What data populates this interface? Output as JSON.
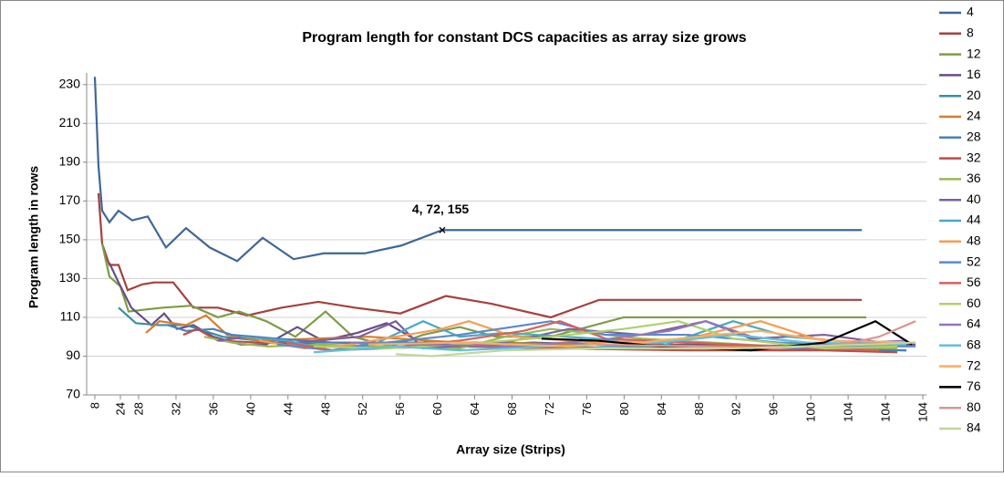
{
  "chart_data": {
    "type": "line",
    "title": "Program length for constant DCS capacities as array size grows",
    "x_label": "Array size (Strips)",
    "y_label": "Program length in rows",
    "annotation": "4, 72, 155",
    "ylim": [
      70,
      236
    ],
    "yticks": [
      70,
      90,
      110,
      130,
      150,
      170,
      190,
      210,
      230
    ],
    "xlim": [
      0,
      90.8
    ],
    "xticks": [
      {
        "value": 0,
        "label": "8"
      },
      {
        "value": 2.8,
        "label": "24"
      },
      {
        "value": 4.8,
        "label": "28"
      },
      {
        "value": 8.9,
        "label": "32"
      },
      {
        "value": 12.99,
        "label": "36"
      },
      {
        "value": 17.09,
        "label": "40"
      },
      {
        "value": 21.18,
        "label": "44"
      },
      {
        "value": 25.28,
        "label": "48"
      },
      {
        "value": 29.37,
        "label": "52"
      },
      {
        "value": 33.47,
        "label": "56"
      },
      {
        "value": 37.56,
        "label": "60"
      },
      {
        "value": 41.66,
        "label": "64"
      },
      {
        "value": 45.75,
        "label": "68"
      },
      {
        "value": 49.85,
        "label": "72"
      },
      {
        "value": 53.94,
        "label": "76"
      },
      {
        "value": 58.04,
        "label": "80"
      },
      {
        "value": 62.13,
        "label": "84"
      },
      {
        "value": 66.23,
        "label": "88"
      },
      {
        "value": 70.32,
        "label": "92"
      },
      {
        "value": 74.42,
        "label": "96"
      },
      {
        "value": 78.51,
        "label": "100"
      },
      {
        "value": 82.61,
        "label": "104"
      },
      {
        "value": 86.7,
        "label": "104"
      },
      {
        "value": 90.8,
        "label": "104"
      }
    ],
    "grid": true,
    "legend": "right",
    "series": [
      {
        "name": "4",
        "color": "#3F6797",
        "x": [
          0,
          0.4,
          0.8,
          1.6,
          2.6,
          4.1,
          5.8,
          7.8,
          10,
          12.6,
          15.6,
          18.4,
          21.8,
          25.1,
          29.6,
          33.6,
          38.1,
          84.1
        ],
        "values": [
          234,
          188,
          165,
          159,
          165,
          160,
          162,
          146,
          156,
          146,
          139,
          151,
          140,
          143,
          143,
          147,
          155,
          155
        ]
      },
      {
        "name": "8",
        "color": "#A5403D",
        "x": [
          0.4,
          0.8,
          1.6,
          2.6,
          3.6,
          5.2,
          6.5,
          8.6,
          10.8,
          13.5,
          16.7,
          20.5,
          24.5,
          28.5,
          33.5,
          38.5,
          43.5,
          50,
          55.3,
          84.1
        ],
        "values": [
          174,
          148,
          137,
          137,
          124,
          127,
          128,
          128,
          115,
          115,
          111,
          115,
          118,
          115,
          112,
          121,
          117,
          110,
          119,
          119
        ]
      },
      {
        "name": "12",
        "color": "#7E9C45",
        "x": [
          0.8,
          1.6,
          2.8,
          3.7,
          5.5,
          7.5,
          10.6,
          13.5,
          15.8,
          18.8,
          22,
          25.3,
          28.3,
          32.5,
          36,
          40,
          44,
          50,
          58,
          84.6
        ],
        "values": [
          148,
          131,
          126,
          113,
          114,
          115,
          116,
          110,
          113,
          108,
          100,
          113,
          100,
          95,
          101,
          105,
          100,
          100,
          110,
          110
        ]
      },
      {
        "name": "16",
        "color": "#674E87",
        "x": [
          1.6,
          2.6,
          4,
          6.2,
          7.6,
          9,
          10.8,
          13,
          16,
          18.8,
          22.2,
          25,
          28.8,
          32,
          35,
          40,
          48,
          55,
          65,
          80,
          90
        ],
        "values": [
          138,
          128,
          115,
          106,
          112,
          104,
          106,
          100,
          96,
          96,
          105,
          98,
          102,
          107,
          99,
          95,
          97,
          96,
          96,
          95,
          96
        ]
      },
      {
        "name": "20",
        "color": "#3B8EA5",
        "x": [
          2.6,
          4.5,
          7,
          10,
          14,
          20,
          30,
          45,
          60,
          75,
          89
        ],
        "values": [
          115,
          107,
          106,
          106,
          100,
          97,
          97,
          97,
          95,
          94,
          93
        ]
      },
      {
        "name": "24",
        "color": "#D67E2E",
        "x": [
          5.6,
          7.1,
          10,
          12.2,
          14.5,
          18,
          24,
          30,
          40,
          55,
          70,
          87
        ],
        "values": [
          102,
          108,
          106,
          111,
          101,
          98,
          99,
          100,
          97,
          96,
          95,
          94
        ]
      },
      {
        "name": "28",
        "color": "#4A7EBB",
        "x": [
          8,
          10,
          13,
          15,
          20,
          26,
          35,
          45,
          60,
          75,
          89
        ],
        "values": [
          106,
          103,
          104,
          101,
          99,
          97,
          96,
          95,
          94,
          94,
          93
        ]
      },
      {
        "name": "32",
        "color": "#BE4B48",
        "x": [
          9.7,
          11.2,
          13.5,
          18,
          24,
          30,
          40,
          50,
          65,
          80,
          88
        ],
        "values": [
          101,
          104,
          98,
          97,
          96,
          94,
          95,
          94,
          93,
          93,
          92
        ]
      },
      {
        "name": "36",
        "color": "#98B954",
        "x": [
          12,
          15,
          19,
          25,
          31,
          40,
          45,
          50,
          60,
          75,
          88
        ],
        "values": [
          100,
          97,
          95,
          96,
          95,
          94,
          100,
          104,
          99,
          95,
          94
        ]
      },
      {
        "name": "40",
        "color": "#7D60A0",
        "x": [
          13.5,
          17,
          22,
          29,
          33,
          36,
          45,
          52,
          60,
          67,
          72,
          80,
          88
        ],
        "values": [
          98,
          100,
          97,
          100,
          108,
          94,
          97,
          104,
          101,
          108,
          99,
          101,
          96
        ]
      },
      {
        "name": "44",
        "color": "#46AAC5",
        "x": [
          16,
          21,
          26,
          31,
          36,
          40,
          45,
          55,
          62,
          70,
          76,
          89
        ],
        "values": [
          100,
          98,
          93,
          97,
          108,
          100,
          102,
          99,
          95,
          108,
          100,
          95
        ]
      },
      {
        "name": "48",
        "color": "#F59D56",
        "x": [
          18,
          23,
          28,
          33,
          38,
          41,
          46,
          55,
          65,
          73,
          79,
          87
        ],
        "values": [
          98,
          94,
          96,
          100,
          104,
          108,
          100,
          97,
          99,
          108,
          99,
          95
        ]
      },
      {
        "name": "52",
        "color": "#5A8ACF",
        "x": [
          20,
          26,
          32,
          40,
          50,
          56,
          65,
          75,
          85,
          90
        ],
        "values": [
          96,
          93,
          97,
          101,
          108,
          101,
          101,
          97,
          95,
          95
        ]
      },
      {
        "name": "56",
        "color": "#D6605D",
        "x": [
          21,
          26,
          32,
          40,
          47,
          51,
          56,
          70,
          80,
          86
        ],
        "values": [
          97,
          93,
          94,
          98,
          103,
          108,
          99,
          96,
          94,
          93
        ]
      },
      {
        "name": "60",
        "color": "#AFD06A",
        "x": [
          24,
          32,
          40,
          48,
          58,
          64,
          70,
          80,
          88
        ],
        "values": [
          95,
          94,
          96,
          99,
          104,
          108,
          99,
          94,
          95
        ]
      },
      {
        "name": "64",
        "color": "#9177B8",
        "x": [
          28,
          35,
          45,
          55,
          63,
          67,
          72,
          80,
          89
        ],
        "values": [
          97,
          96,
          95,
          98,
          103,
          108,
          100,
          96,
          98
        ]
      },
      {
        "name": "68",
        "color": "#5CC2DE",
        "x": [
          24,
          33,
          40,
          50,
          62,
          70,
          78,
          89
        ],
        "values": [
          92,
          95,
          93,
          95,
          97,
          101,
          97,
          96
        ]
      },
      {
        "name": "72",
        "color": "#FAAE5E",
        "x": [
          30,
          40,
          52,
          60,
          68,
          73,
          80,
          90
        ],
        "values": [
          96,
          97,
          95,
          97,
          101,
          103,
          98,
          97
        ]
      },
      {
        "name": "76",
        "color": "#000000",
        "x": [
          49,
          55,
          62,
          72,
          80,
          85.6,
          89.6
        ],
        "values": [
          99,
          98,
          95,
          93,
          97,
          108,
          96
        ]
      },
      {
        "name": "80",
        "color": "#D99694",
        "x": [
          55,
          65,
          75,
          82,
          86,
          90
        ],
        "values": [
          96,
          95,
          94,
          96,
          100,
          108
        ]
      },
      {
        "name": "84",
        "color": "#C3D69B",
        "x": [
          33,
          37,
          45,
          55,
          70,
          85,
          90
        ],
        "values": [
          91,
          90,
          93,
          94,
          94,
          96,
          97
        ]
      }
    ]
  }
}
